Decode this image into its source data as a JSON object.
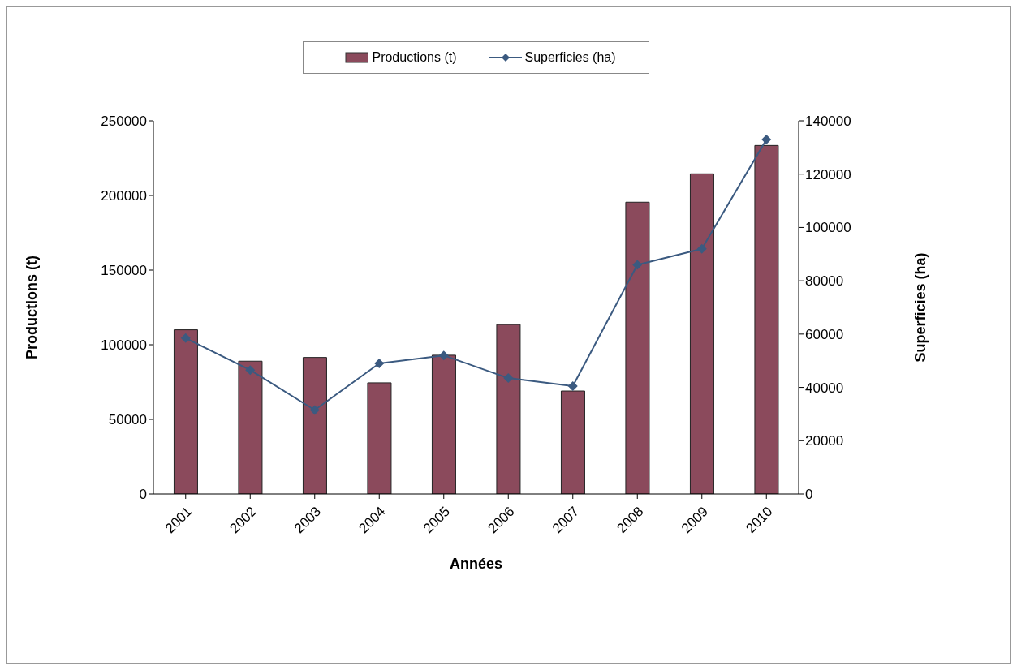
{
  "chart_data": {
    "type": "bar",
    "xlabel": "Années",
    "ylabel": "Productions (t)",
    "y2label": "Superficies (ha)",
    "categories": [
      "2001",
      "2002",
      "2003",
      "2004",
      "2005",
      "2006",
      "2007",
      "2008",
      "2009",
      "2010"
    ],
    "series": [
      {
        "name": "Productions (t)",
        "color": "#8b4a5c",
        "values": [
          110000,
          89000,
          91500,
          74500,
          93000,
          113500,
          69000,
          195500,
          214500,
          233500
        ]
      },
      {
        "name": "Superficies (ha)",
        "type": "line",
        "axis": "y2",
        "color": "#3b5a80",
        "marker": "diamond",
        "values": [
          58500,
          46500,
          31500,
          49000,
          52000,
          43500,
          40500,
          86000,
          92000,
          133000
        ]
      }
    ],
    "ylim": [
      0,
      250000
    ],
    "yticks": [
      0,
      50000,
      100000,
      150000,
      200000,
      250000
    ],
    "y2lim": [
      0,
      140000
    ],
    "y2ticks": [
      0,
      20000,
      40000,
      60000,
      80000,
      100000,
      120000,
      140000
    ],
    "grid": false,
    "legend": "top"
  }
}
